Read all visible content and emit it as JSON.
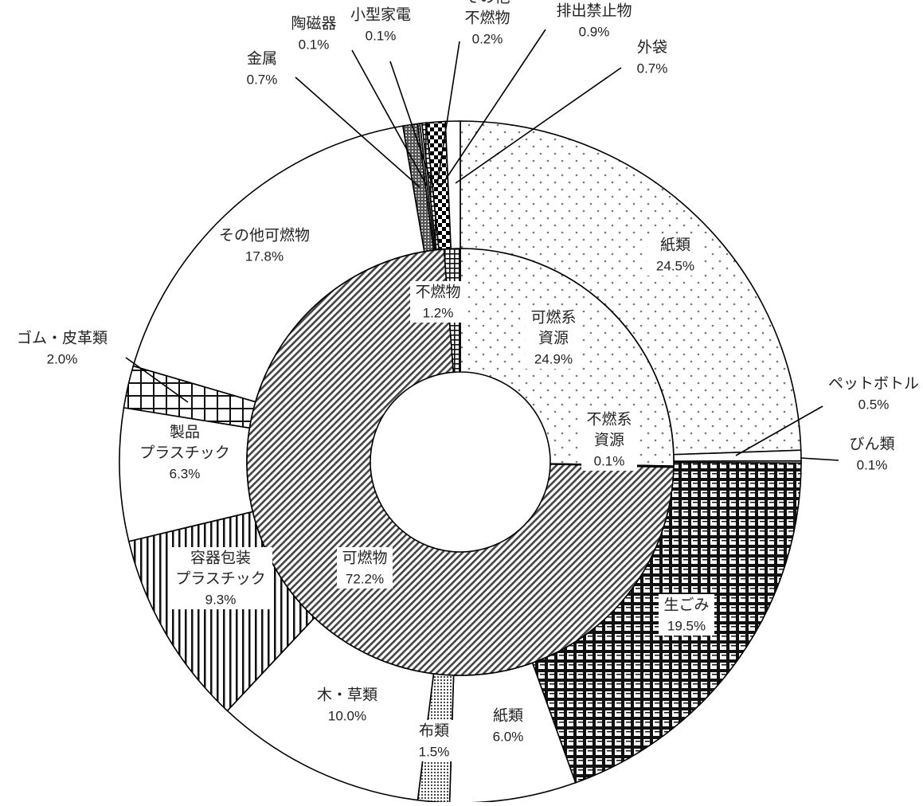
{
  "chart_data": {
    "type": "pie",
    "subtype": "double-donut",
    "title": "",
    "inner_ring": [
      {
        "name": "可燃系資源",
        "value": 24.9
      },
      {
        "name": "不燃系資源",
        "value": 0.1
      },
      {
        "name": "可燃物",
        "value": 72.2
      },
      {
        "name": "不燃物",
        "value": 1.2
      }
    ],
    "outer_ring": [
      {
        "name": "紙類",
        "value": 24.5,
        "group": "可燃系資源"
      },
      {
        "name": "ペットボトル",
        "value": 0.5,
        "group": "可燃系資源"
      },
      {
        "name": "びん類",
        "value": 0.1,
        "group": "不燃系資源"
      },
      {
        "name": "生ごみ",
        "value": 19.5,
        "group": "可燃物"
      },
      {
        "name": "紙類",
        "value": 6.0,
        "group": "可燃物"
      },
      {
        "name": "布類",
        "value": 1.5,
        "group": "可燃物"
      },
      {
        "name": "木・草類",
        "value": 10.0,
        "group": "可燃物"
      },
      {
        "name": "容器包装プラスチック",
        "value": 9.3,
        "group": "可燃物"
      },
      {
        "name": "製品プラスチック",
        "value": 6.3,
        "group": "可燃物"
      },
      {
        "name": "ゴム・皮革類",
        "value": 2.0,
        "group": "可燃物"
      },
      {
        "name": "その他可燃物",
        "value": 17.8,
        "group": "可燃物"
      },
      {
        "name": "金属",
        "value": 0.7,
        "group": "不燃物"
      },
      {
        "name": "陶磁器",
        "value": 0.1,
        "group": "不燃物"
      },
      {
        "name": "小型家電",
        "value": 0.1,
        "group": "不燃物"
      },
      {
        "name": "その他不燃物",
        "value": 0.2,
        "group": "不燃物"
      },
      {
        "name": "排出禁止物",
        "value": 0.9,
        "group": "その他"
      },
      {
        "name": "外袋",
        "value": 0.7,
        "group": "その他"
      }
    ],
    "inner_labels": [
      {
        "name_lines": [
          "可燃系",
          "資源"
        ],
        "value_text": "24.9%"
      },
      {
        "name_lines": [
          "不燃系",
          "資源"
        ],
        "value_text": "0.1%"
      },
      {
        "name_lines": [
          "可燃物"
        ],
        "value_text": "72.2%"
      },
      {
        "name_lines": [
          "不燃物"
        ],
        "value_text": "1.2%"
      }
    ],
    "outer_labels": [
      {
        "name_lines": [
          "紙類"
        ],
        "value_text": "24.5%"
      },
      {
        "name_lines": [
          "ペットボトル"
        ],
        "value_text": "0.5%"
      },
      {
        "name_lines": [
          "びん類"
        ],
        "value_text": "0.1%"
      },
      {
        "name_lines": [
          "生ごみ"
        ],
        "value_text": "19.5%"
      },
      {
        "name_lines": [
          "紙類"
        ],
        "value_text": "6.0%"
      },
      {
        "name_lines": [
          "布類"
        ],
        "value_text": "1.5%"
      },
      {
        "name_lines": [
          "木・草類"
        ],
        "value_text": "10.0%"
      },
      {
        "name_lines": [
          "容器包装",
          "プラスチック"
        ],
        "value_text": "9.3%"
      },
      {
        "name_lines": [
          "製品",
          "プラスチック"
        ],
        "value_text": "6.3%"
      },
      {
        "name_lines": [
          "ゴム・皮革類"
        ],
        "value_text": "2.0%"
      },
      {
        "name_lines": [
          "その他可燃物"
        ],
        "value_text": "17.8%"
      },
      {
        "name_lines": [
          "金属"
        ],
        "value_text": "0.7%"
      },
      {
        "name_lines": [
          "陶磁器"
        ],
        "value_text": "0.1%"
      },
      {
        "name_lines": [
          "小型家電"
        ],
        "value_text": "0.1%"
      },
      {
        "name_lines": [
          "その他",
          "不燃物"
        ],
        "value_text": "0.2%"
      },
      {
        "name_lines": [
          "排出禁止物"
        ],
        "value_text": "0.9%"
      },
      {
        "name_lines": [
          "外袋"
        ],
        "value_text": "0.7%"
      }
    ],
    "legend": "none",
    "start_angle": "top, clockwise",
    "colors": {
      "stroke": "#000000",
      "background": "#ffffff",
      "text": "#222222"
    },
    "patterns": [
      "sparse-dots",
      "hatch-diagonal",
      "plaid-large",
      "plaid-small",
      "grid",
      "dense-dots",
      "vertical-lines",
      "checker",
      "dark-dots",
      "gray-dots"
    ]
  }
}
